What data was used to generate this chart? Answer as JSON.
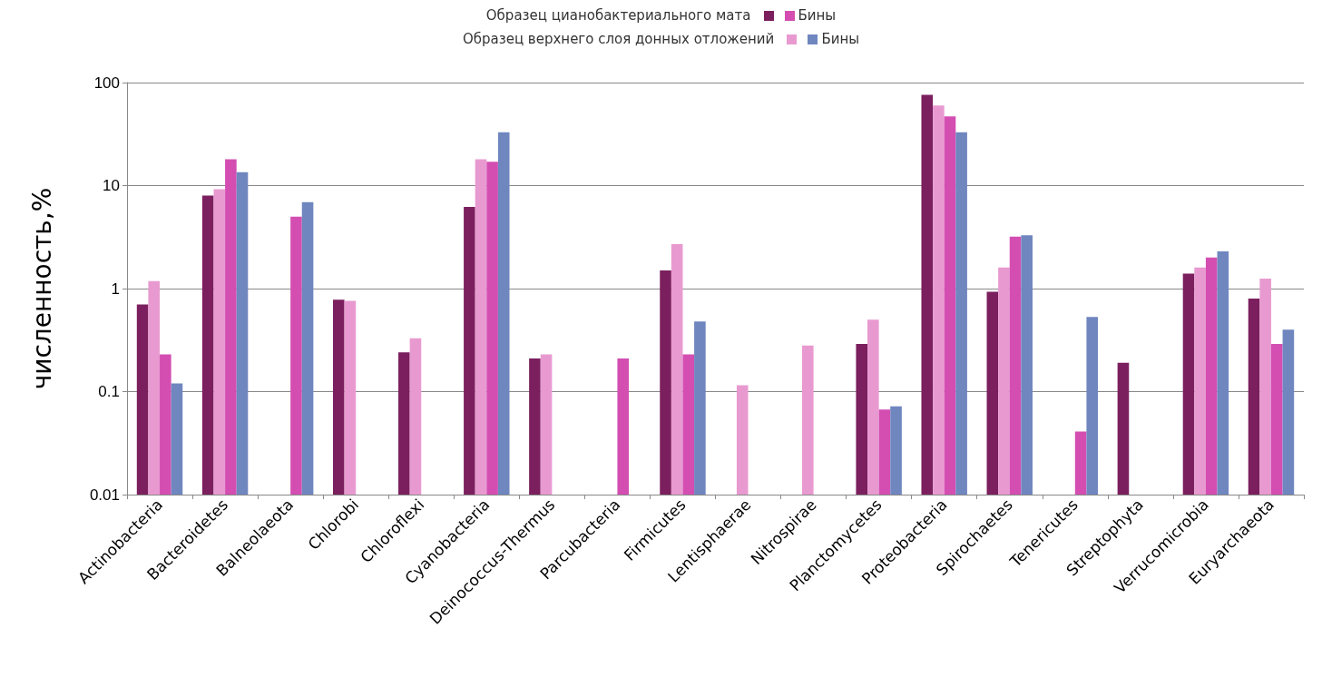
{
  "chart_data": {
    "type": "bar",
    "ylabel": "численность,%",
    "log": true,
    "grid": "y",
    "legend": "top",
    "annotations": [
      "Образец цианобактериального мата",
      "Образец верхнего слоя донных отложений"
    ],
    "categories": [
      "Actinobacteria",
      "Bacteroidetes",
      "Balneolaeota",
      "Chlorobi",
      "Chloroflexi",
      "Cyanobacteria",
      "Deinococcus-Thermus",
      "Parcubacteria",
      "Firmicutes",
      "Lentisphaerae",
      "Nitrospirae",
      "Planctomycetes",
      "Proteobacteria",
      "Spirochaetes",
      "Tenericutes",
      "Streptophyta",
      "Verrucomicrobia",
      "Euryarchaeota"
    ],
    "ylim": [
      0.01,
      100
    ],
    "yticks": [
      0.01,
      0.1,
      1,
      10,
      100
    ],
    "series": [
      {
        "color": "#7b1f5e",
        "values": [
          0.7,
          8,
          null,
          0.78,
          0.24,
          6.2,
          0.21,
          null,
          1.5,
          null,
          null,
          0.29,
          76,
          0.93,
          null,
          0.19,
          1.4,
          0.8
        ]
      },
      {
        "color": "#e89ad0",
        "values": [
          1.18,
          9.2,
          null,
          0.76,
          0.33,
          18,
          0.23,
          null,
          2.7,
          0.115,
          0.28,
          0.5,
          60,
          1.6,
          null,
          null,
          1.6,
          1.25
        ]
      },
      {
        "name": "Бины",
        "color": "#d44eb2",
        "values": [
          0.23,
          18,
          5,
          null,
          null,
          17,
          null,
          0.21,
          0.23,
          null,
          null,
          0.067,
          47,
          3.2,
          0.041,
          null,
          2.0,
          0.29
        ]
      },
      {
        "name": "Бины",
        "color": "#6f86bf",
        "values": [
          0.12,
          13.5,
          6.9,
          null,
          null,
          33,
          null,
          null,
          0.48,
          null,
          null,
          0.072,
          33,
          3.3,
          0.53,
          null,
          2.3,
          0.4
        ]
      }
    ]
  }
}
